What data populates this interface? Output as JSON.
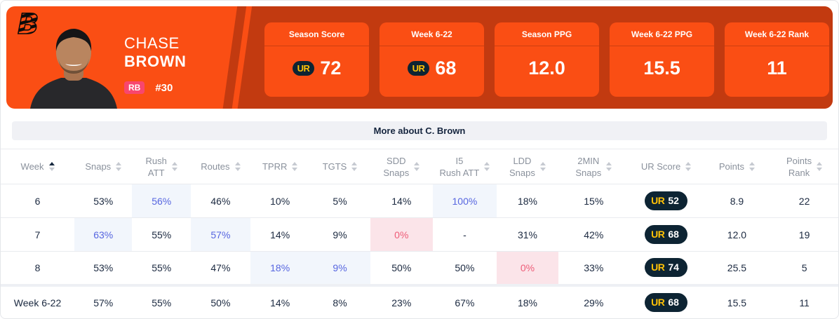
{
  "player": {
    "team": "Cincinnati Bengals",
    "first_name": "CHASE",
    "last_name": "BROWN",
    "position": "RB",
    "jersey_number": "#30"
  },
  "ur_logo_text": "UR",
  "stat_cards": [
    {
      "label": "Season Score",
      "value": "72",
      "has_ur_logo": true
    },
    {
      "label": "Week 6-22",
      "value": "68",
      "has_ur_logo": true
    },
    {
      "label": "Season PPG",
      "value": "12.0",
      "has_ur_logo": false
    },
    {
      "label": "Week 6-22 PPG",
      "value": "15.5",
      "has_ur_logo": false
    },
    {
      "label": "Week 6-22 Rank",
      "value": "11",
      "has_ur_logo": false
    }
  ],
  "section_bar": {
    "label": "More about C. Brown"
  },
  "table": {
    "columns": [
      {
        "label": "Week",
        "sort": "asc"
      },
      {
        "label": "Snaps",
        "sort": "none"
      },
      {
        "label": "Rush\nATT",
        "sort": "none"
      },
      {
        "label": "Routes",
        "sort": "none"
      },
      {
        "label": "TPRR",
        "sort": "none"
      },
      {
        "label": "TGTS",
        "sort": "none"
      },
      {
        "label": "SDD\nSnaps",
        "sort": "none"
      },
      {
        "label": "I5\nRush ATT",
        "sort": "none"
      },
      {
        "label": "LDD\nSnaps",
        "sort": "none"
      },
      {
        "label": "2MIN\nSnaps",
        "sort": "none"
      },
      {
        "label": "UR Score",
        "sort": "none"
      },
      {
        "label": "Points",
        "sort": "none"
      },
      {
        "label": "Points\nRank",
        "sort": "none"
      }
    ],
    "rows": [
      {
        "summary": false,
        "cells": [
          {
            "text": "6"
          },
          {
            "text": "53%"
          },
          {
            "text": "56%",
            "highlight": "blue"
          },
          {
            "text": "46%"
          },
          {
            "text": "10%"
          },
          {
            "text": "5%"
          },
          {
            "text": "14%"
          },
          {
            "text": "100%",
            "highlight": "blue"
          },
          {
            "text": "18%"
          },
          {
            "text": "15%"
          },
          {
            "text": "52",
            "badge": true
          },
          {
            "text": "8.9"
          },
          {
            "text": "22"
          }
        ]
      },
      {
        "summary": false,
        "cells": [
          {
            "text": "7"
          },
          {
            "text": "63%",
            "highlight": "blue"
          },
          {
            "text": "55%"
          },
          {
            "text": "57%",
            "highlight": "blue"
          },
          {
            "text": "14%"
          },
          {
            "text": "9%"
          },
          {
            "text": "0%",
            "highlight": "pink"
          },
          {
            "text": "-"
          },
          {
            "text": "31%"
          },
          {
            "text": "42%"
          },
          {
            "text": "68",
            "badge": true
          },
          {
            "text": "12.0"
          },
          {
            "text": "19"
          }
        ]
      },
      {
        "summary": false,
        "cells": [
          {
            "text": "8"
          },
          {
            "text": "53%"
          },
          {
            "text": "55%"
          },
          {
            "text": "47%"
          },
          {
            "text": "18%",
            "highlight": "blue"
          },
          {
            "text": "9%",
            "highlight": "blue"
          },
          {
            "text": "50%"
          },
          {
            "text": "50%"
          },
          {
            "text": "0%",
            "highlight": "pink"
          },
          {
            "text": "33%"
          },
          {
            "text": "74",
            "badge": true
          },
          {
            "text": "25.5"
          },
          {
            "text": "5"
          }
        ]
      },
      {
        "summary": true,
        "cells": [
          {
            "text": "Week 6-22"
          },
          {
            "text": "57%"
          },
          {
            "text": "55%"
          },
          {
            "text": "50%"
          },
          {
            "text": "14%"
          },
          {
            "text": "8%"
          },
          {
            "text": "23%"
          },
          {
            "text": "67%"
          },
          {
            "text": "18%"
          },
          {
            "text": "29%"
          },
          {
            "text": "68",
            "badge": true
          },
          {
            "text": "15.5"
          },
          {
            "text": "11"
          }
        ]
      }
    ]
  },
  "colors": {
    "accent_orange": "#FA4E14",
    "dark_orange": "#C23A10",
    "navy": "#0D2433",
    "ur_yellow": "#FFC107",
    "position_pink": "#F8466E",
    "highlight_blue_text": "#5766E0",
    "highlight_blue_bg": "#F2F6FC",
    "highlight_pink_text": "#EE5D78",
    "highlight_pink_bg": "#FBE4E9"
  }
}
